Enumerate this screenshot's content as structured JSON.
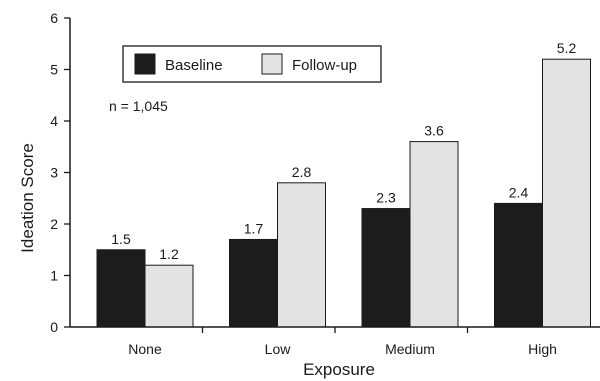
{
  "chart_data": {
    "type": "bar",
    "categories": [
      "None",
      "Low",
      "Medium",
      "High"
    ],
    "series": [
      {
        "name": "Baseline",
        "values": [
          1.5,
          1.7,
          2.3,
          2.4
        ],
        "color": "#1c1c1c"
      },
      {
        "name": "Follow-up",
        "values": [
          1.2,
          2.8,
          3.6,
          5.2
        ],
        "color": "#e3e3e3"
      }
    ],
    "data_labels": [
      [
        "1.5",
        "1.7",
        "2.3",
        "2.4"
      ],
      [
        "1.2",
        "2.8",
        "3.6",
        "5.2"
      ]
    ],
    "xlabel": "Exposure",
    "ylabel": "Ideation Score",
    "ylim": [
      0,
      6
    ],
    "yticks": [
      "0",
      "1",
      "2",
      "3",
      "4",
      "5",
      "6"
    ],
    "grid": false,
    "legend_position": "top-left",
    "annotation": "n = 1,045"
  }
}
